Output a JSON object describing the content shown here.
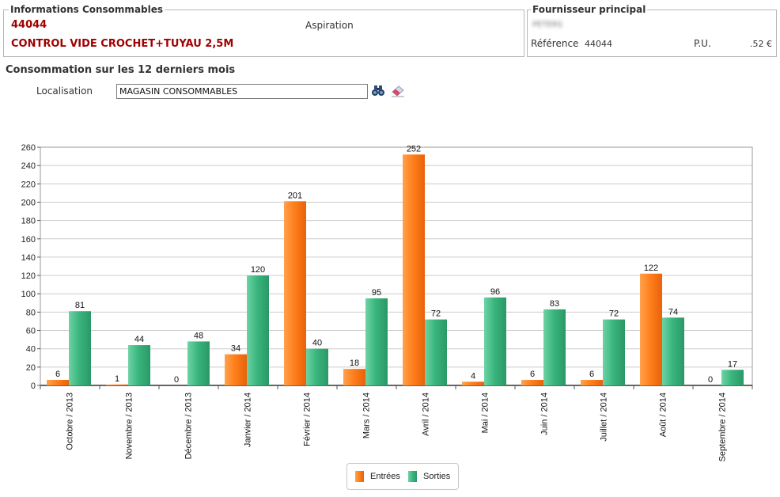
{
  "info": {
    "title": "Informations Consommables",
    "code": "44044",
    "category": "Aspiration",
    "name": "CONTROL VIDE CROCHET+TUYAU 2,5M"
  },
  "supplier": {
    "title": "Fournisseur principal",
    "name": "PETERS",
    "ref_label": "Référence",
    "ref_value": "44044",
    "pu_label": "P.U.",
    "pu_value": ".52 €"
  },
  "section_title": "Consommation sur les 12 derniers mois",
  "localisation": {
    "label": "Localisation",
    "value": "MAGASIN CONSOMMABLES"
  },
  "icons": {
    "search": "binoculars-icon",
    "clear": "eraser-icon"
  },
  "colors": {
    "entrees": "#ff7f1c",
    "sorties": "#3ab67e",
    "grid": "#cccccc"
  },
  "chart_data": {
    "type": "bar",
    "categories": [
      "Octobre / 2013",
      "Novembre / 2013",
      "Décembre / 2013",
      "Janvier / 2014",
      "Février / 2014",
      "Mars / 2014",
      "Avril / 2014",
      "Mai / 2014",
      "Juin / 2014",
      "Juillet / 2014",
      "Août / 2014",
      "Septembre / 2014"
    ],
    "series": [
      {
        "name": "Entrées",
        "values": [
          6,
          1,
          0,
          34,
          201,
          18,
          252,
          4,
          6,
          6,
          122,
          0
        ]
      },
      {
        "name": "Sorties",
        "values": [
          81,
          44,
          48,
          120,
          40,
          95,
          72,
          96,
          83,
          72,
          74,
          17
        ]
      }
    ],
    "ylim": [
      0,
      260
    ],
    "yticks": [
      0,
      20,
      40,
      60,
      80,
      100,
      120,
      140,
      160,
      180,
      200,
      220,
      240,
      260
    ],
    "grid": true,
    "legend_position": "bottom-center",
    "title": "",
    "xlabel": "",
    "ylabel": ""
  }
}
